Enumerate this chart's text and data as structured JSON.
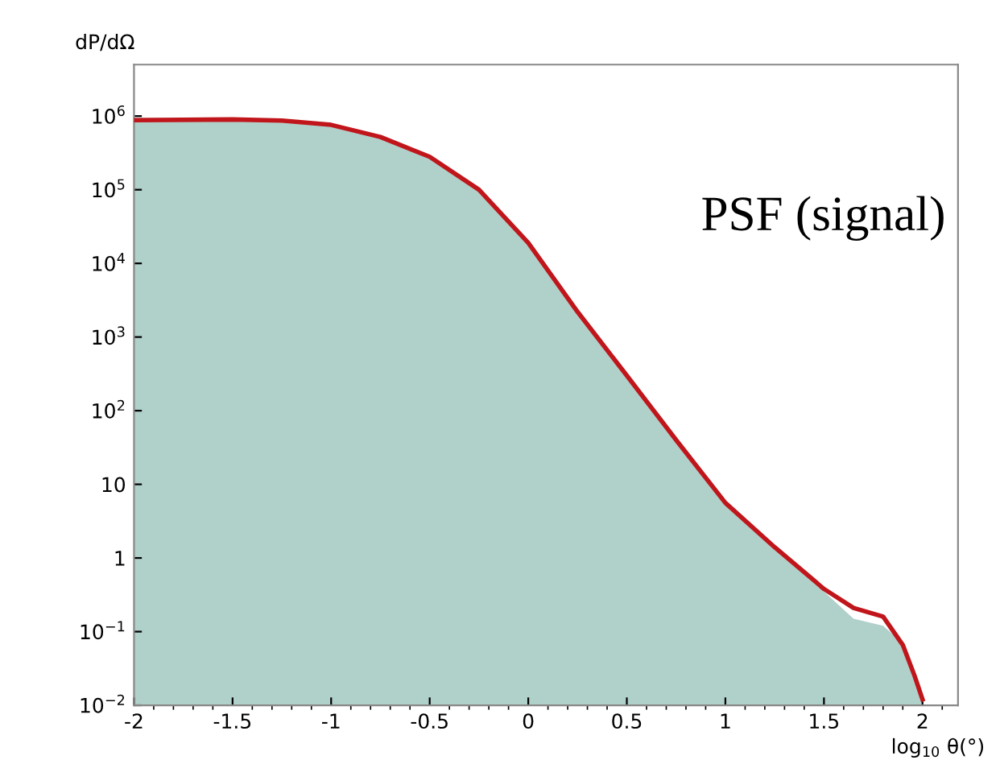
{
  "chart_data": {
    "type": "area",
    "ylabel": "dP/dΩ",
    "xlabel": "log$_{10}$ θ(°)",
    "annotations": [
      "PSF (signal)"
    ],
    "x": [
      -2,
      -1.5,
      -1.25,
      -1,
      -0.75,
      -0.5,
      -0.25,
      0,
      0.25,
      0.5,
      0.75,
      1,
      1.25,
      1.5,
      1.65,
      1.8,
      1.9,
      1.96,
      2.0
    ],
    "series": [
      {
        "color": "#b0d0ca",
        "values": [
          950000,
          920000,
          860000,
          750000,
          520000,
          280000,
          100000,
          19000,
          2200,
          300,
          42,
          6,
          1.5,
          0.35,
          0.15,
          0.12,
          0.07,
          0.03,
          0.012
        ]
      },
      {
        "type": "line",
        "color": "#c0161b",
        "values": [
          880000,
          900000,
          870000,
          760000,
          520000,
          280000,
          100000,
          19000,
          2200,
          300,
          40,
          5.6,
          1.4,
          0.38,
          0.21,
          0.16,
          0.066,
          0.025,
          0.012
        ]
      }
    ],
    "log": "y",
    "xlim": [
      -2,
      2.18
    ],
    "ylim": [
      0.01,
      5000000
    ],
    "xticks": [
      -2,
      -1.5,
      -1,
      -0.5,
      0,
      0.5,
      1,
      1.5,
      2
    ],
    "yticks": [
      {
        "value": 1000000,
        "label": "10$^{6}$"
      },
      {
        "value": 100000,
        "label": "10$^{5}$"
      },
      {
        "value": 10000,
        "label": "10$^{4}$"
      },
      {
        "value": 1000,
        "label": "10$^{3}$"
      },
      {
        "value": 100,
        "label": "10$^{2}$"
      },
      10,
      1,
      {
        "value": 0.1,
        "label": "10$^{−1}$"
      },
      {
        "value": 0.01,
        "label": "10$^{−2}$"
      }
    ],
    "grid": false,
    "legend": false
  }
}
